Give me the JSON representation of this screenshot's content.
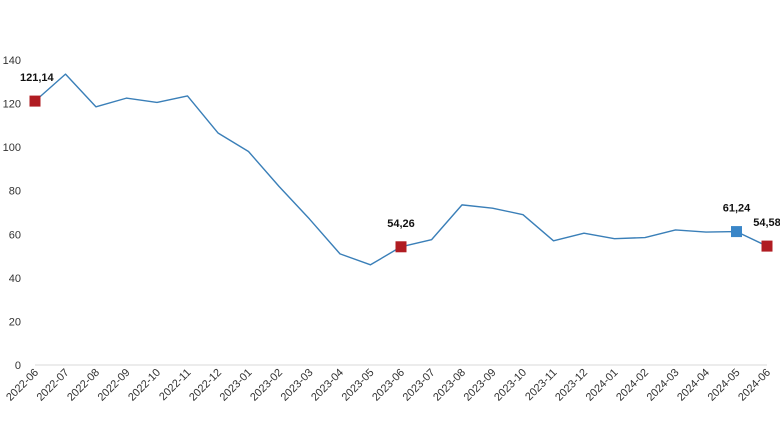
{
  "chart_data": {
    "type": "line",
    "title": "",
    "xlabel": "",
    "ylabel": "",
    "ylim": [
      0,
      140
    ],
    "yticks": [
      0,
      20,
      40,
      60,
      80,
      100,
      120,
      140
    ],
    "grid": false,
    "legend": "none",
    "categories": [
      "2022-06",
      "2022-07",
      "2022-08",
      "2022-09",
      "2022-10",
      "2022-11",
      "2022-12",
      "2023-01",
      "2023-02",
      "2023-03",
      "2023-04",
      "2023-05",
      "2023-06",
      "2023-07",
      "2023-08",
      "2023-09",
      "2023-10",
      "2023-11",
      "2023-12",
      "2024-01",
      "2024-02",
      "2024-03",
      "2024-04",
      "2024-05",
      "2024-06"
    ],
    "series": [
      {
        "values": [
          121.14,
          133.5,
          118.5,
          122.5,
          120.5,
          123.5,
          106.5,
          98.0,
          82.0,
          67.0,
          51.0,
          46.0,
          54.26,
          57.5,
          73.5,
          72.0,
          69.0,
          57.0,
          60.5,
          58.0,
          58.5,
          62.0,
          61.0,
          61.24,
          54.58
        ]
      }
    ],
    "markers": [
      {
        "index": 0,
        "label": "121,14",
        "color": "#b01c22"
      },
      {
        "index": 12,
        "label": "54,26",
        "color": "#b01c22"
      },
      {
        "index": 23,
        "label": "61,24",
        "color": "#3a86c8"
      },
      {
        "index": 24,
        "label": "54,58",
        "color": "#b01c22"
      }
    ],
    "line_color": "#3a7fb8",
    "axis_color": "#d9d9d9"
  }
}
